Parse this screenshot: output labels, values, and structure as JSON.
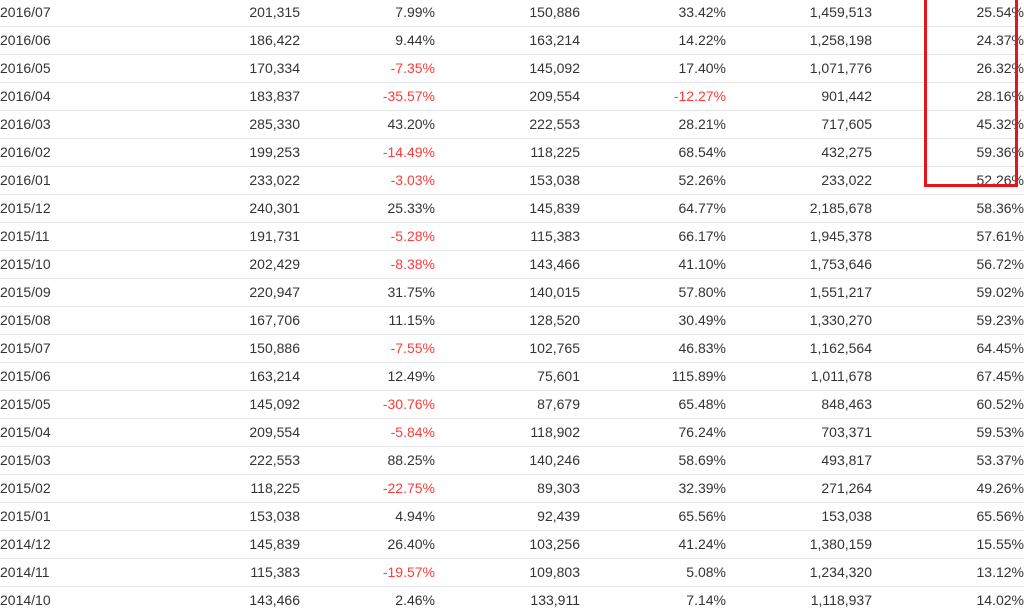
{
  "table": {
    "rows": [
      {
        "month": "2016/07",
        "c1": "201,315",
        "c2": "7.99%",
        "c3": "150,886",
        "c4": "33.42%",
        "c5": "1,459,513",
        "c6": "25.54%"
      },
      {
        "month": "2016/06",
        "c1": "186,422",
        "c2": "9.44%",
        "c3": "163,214",
        "c4": "14.22%",
        "c5": "1,258,198",
        "c6": "24.37%"
      },
      {
        "month": "2016/05",
        "c1": "170,334",
        "c2": "-7.35%",
        "c3": "145,092",
        "c4": "17.40%",
        "c5": "1,071,776",
        "c6": "26.32%"
      },
      {
        "month": "2016/04",
        "c1": "183,837",
        "c2": "-35.57%",
        "c3": "209,554",
        "c4": "-12.27%",
        "c5": "901,442",
        "c6": "28.16%"
      },
      {
        "month": "2016/03",
        "c1": "285,330",
        "c2": "43.20%",
        "c3": "222,553",
        "c4": "28.21%",
        "c5": "717,605",
        "c6": "45.32%"
      },
      {
        "month": "2016/02",
        "c1": "199,253",
        "c2": "-14.49%",
        "c3": "118,225",
        "c4": "68.54%",
        "c5": "432,275",
        "c6": "59.36%"
      },
      {
        "month": "2016/01",
        "c1": "233,022",
        "c2": "-3.03%",
        "c3": "153,038",
        "c4": "52.26%",
        "c5": "233,022",
        "c6": "52.26%"
      },
      {
        "month": "2015/12",
        "c1": "240,301",
        "c2": "25.33%",
        "c3": "145,839",
        "c4": "64.77%",
        "c5": "2,185,678",
        "c6": "58.36%"
      },
      {
        "month": "2015/11",
        "c1": "191,731",
        "c2": "-5.28%",
        "c3": "115,383",
        "c4": "66.17%",
        "c5": "1,945,378",
        "c6": "57.61%"
      },
      {
        "month": "2015/10",
        "c1": "202,429",
        "c2": "-8.38%",
        "c3": "143,466",
        "c4": "41.10%",
        "c5": "1,753,646",
        "c6": "56.72%"
      },
      {
        "month": "2015/09",
        "c1": "220,947",
        "c2": "31.75%",
        "c3": "140,015",
        "c4": "57.80%",
        "c5": "1,551,217",
        "c6": "59.02%"
      },
      {
        "month": "2015/08",
        "c1": "167,706",
        "c2": "11.15%",
        "c3": "128,520",
        "c4": "30.49%",
        "c5": "1,330,270",
        "c6": "59.23%"
      },
      {
        "month": "2015/07",
        "c1": "150,886",
        "c2": "-7.55%",
        "c3": "102,765",
        "c4": "46.83%",
        "c5": "1,162,564",
        "c6": "64.45%"
      },
      {
        "month": "2015/06",
        "c1": "163,214",
        "c2": "12.49%",
        "c3": "75,601",
        "c4": "115.89%",
        "c5": "1,011,678",
        "c6": "67.45%"
      },
      {
        "month": "2015/05",
        "c1": "145,092",
        "c2": "-30.76%",
        "c3": "87,679",
        "c4": "65.48%",
        "c5": "848,463",
        "c6": "60.52%"
      },
      {
        "month": "2015/04",
        "c1": "209,554",
        "c2": "-5.84%",
        "c3": "118,902",
        "c4": "76.24%",
        "c5": "703,371",
        "c6": "59.53%"
      },
      {
        "month": "2015/03",
        "c1": "222,553",
        "c2": "88.25%",
        "c3": "140,246",
        "c4": "58.69%",
        "c5": "493,817",
        "c6": "53.37%"
      },
      {
        "month": "2015/02",
        "c1": "118,225",
        "c2": "-22.75%",
        "c3": "89,303",
        "c4": "32.39%",
        "c5": "271,264",
        "c6": "49.26%"
      },
      {
        "month": "2015/01",
        "c1": "153,038",
        "c2": "4.94%",
        "c3": "92,439",
        "c4": "65.56%",
        "c5": "153,038",
        "c6": "65.56%"
      },
      {
        "month": "2014/12",
        "c1": "145,839",
        "c2": "26.40%",
        "c3": "103,256",
        "c4": "41.24%",
        "c5": "1,380,159",
        "c6": "15.55%"
      },
      {
        "month": "2014/11",
        "c1": "115,383",
        "c2": "-19.57%",
        "c3": "109,803",
        "c4": "5.08%",
        "c5": "1,234,320",
        "c6": "13.12%"
      },
      {
        "month": "2014/10",
        "c1": "143,466",
        "c2": "2.46%",
        "c3": "133,911",
        "c4": "7.14%",
        "c5": "1,118,937",
        "c6": "14.02%"
      }
    ]
  },
  "colors": {
    "text": "#333333",
    "negative": "#ff3b3b",
    "row_border": "#e5e5e5",
    "highlight": "#e8141c"
  }
}
